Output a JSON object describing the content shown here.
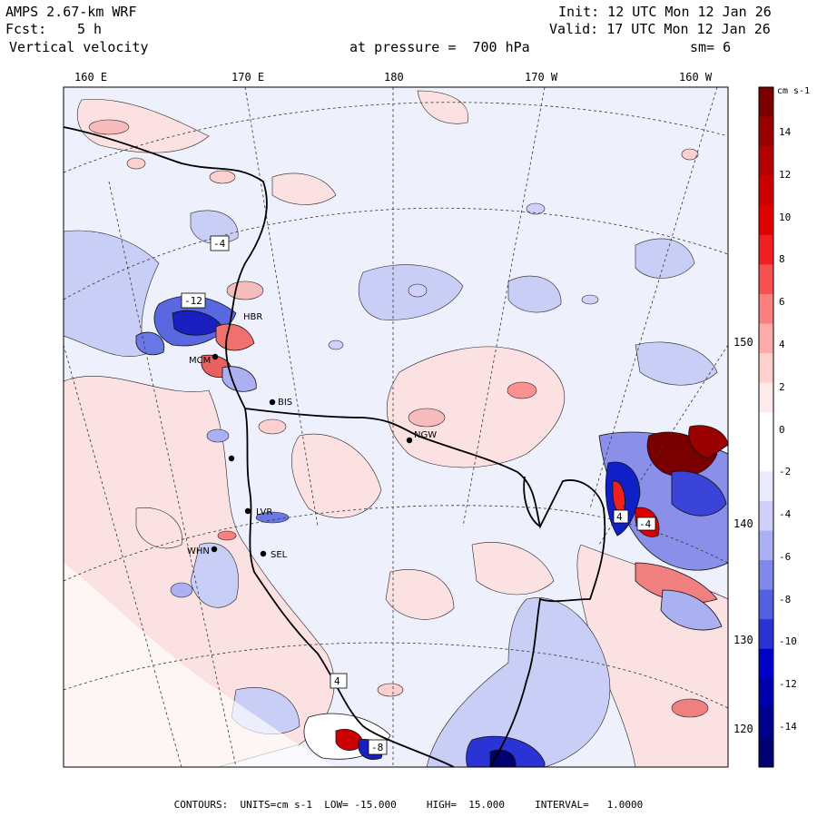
{
  "header": {
    "model": "AMPS 2.67-km WRF",
    "fcst_label": "Fcst:",
    "fcst_value": "5 h",
    "variable": "Vertical velocity",
    "init": "Init: 12 UTC Mon 12 Jan 26",
    "valid": "Valid: 17 UTC Mon 12 Jan 26",
    "pressure": "at pressure =  700 hPa",
    "smoothing": "sm= 6"
  },
  "longitude_labels": [
    "160 E",
    "170 E",
    "180",
    "170 W",
    "160 W"
  ],
  "latitude_labels": [
    "150 W",
    "140 W",
    "130 W",
    "120 W"
  ],
  "colorbar": {
    "units": "cm s-1",
    "ticks": [
      "14",
      "12",
      "10",
      "8",
      "6",
      "4",
      "2",
      "0",
      "-2",
      "-4",
      "-6",
      "-8",
      "-10",
      "-12",
      "-14"
    ],
    "colors": [
      "#7a0000",
      "#9a0000",
      "#b40000",
      "#cc0000",
      "#e00000",
      "#f02020",
      "#f75050",
      "#fa8080",
      "#fcaaaa",
      "#fdd0d0",
      "#feeaea",
      "#ffffff",
      "#ffffff",
      "#eaeaff",
      "#d0d0fa",
      "#aab0f2",
      "#8088ea",
      "#5560e0",
      "#2a34d4",
      "#0000c8",
      "#0000aa",
      "#00008c",
      "#000070"
    ]
  },
  "stations": [
    "MCM",
    "HBR",
    "BIS",
    "NGW",
    "WHN",
    "SEL",
    "LVR"
  ],
  "contour_labels": [
    "-4",
    "-12",
    "4",
    "4",
    "-4",
    "-8"
  ],
  "footer": {
    "contours_label": "CONTOURS:",
    "units": "UNITS=cm s-1",
    "low": "LOW= -15.000",
    "high": "HIGH=  15.000",
    "interval": "INTERVAL=   1.0000"
  }
}
